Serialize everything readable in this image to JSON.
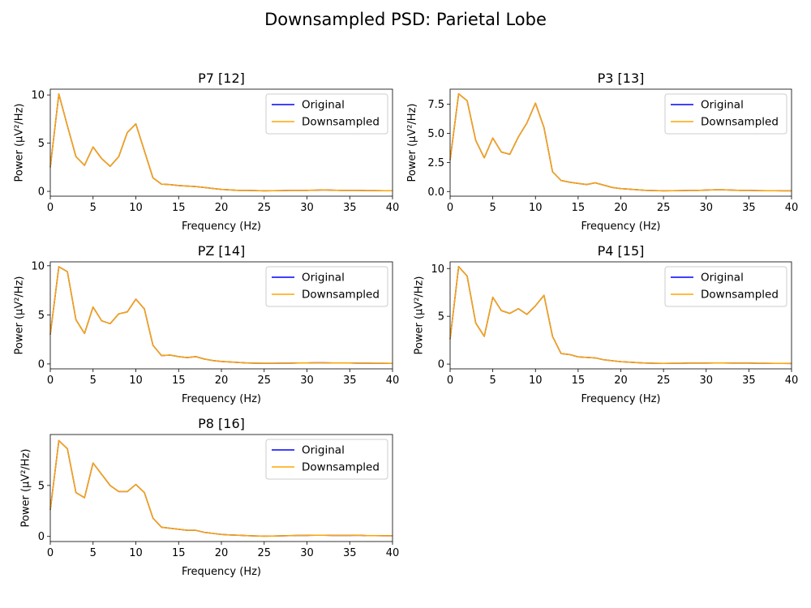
{
  "figure": {
    "suptitle": "Downsampled PSD: Parietal Lobe"
  },
  "colors": {
    "original": "#0000ff",
    "downsampled": "#ffa500",
    "axes": "#000000",
    "legend_border": "#cccccc"
  },
  "chart_data": [
    {
      "type": "line",
      "title": "P7 [12]",
      "xlabel": "Frequency (Hz)",
      "ylabel": "Power (µV²/Hz)",
      "xlim": [
        0,
        40
      ],
      "ylim": [
        -0.5,
        10.6
      ],
      "xticks": [
        0,
        5,
        10,
        15,
        20,
        25,
        30,
        35,
        40
      ],
      "yticks": [
        0,
        5,
        10
      ],
      "ytick_labels": [
        "0",
        "5",
        "10"
      ],
      "legend_position": "upper right",
      "x": [
        0,
        1,
        2,
        3,
        4,
        5,
        6,
        7,
        8,
        9,
        10,
        11,
        12,
        13,
        14,
        15,
        16,
        17,
        18,
        19,
        20,
        21,
        22,
        23,
        24,
        25,
        26,
        27,
        28,
        29,
        30,
        31,
        32,
        33,
        34,
        35,
        36,
        37,
        38,
        39,
        40
      ],
      "series": [
        {
          "name": "Original",
          "values": [
            2.5,
            10.1,
            6.8,
            3.6,
            2.7,
            4.6,
            3.4,
            2.6,
            3.6,
            6.1,
            7.0,
            4.2,
            1.4,
            0.75,
            0.7,
            0.6,
            0.55,
            0.5,
            0.4,
            0.3,
            0.2,
            0.15,
            0.1,
            0.1,
            0.08,
            0.06,
            0.07,
            0.08,
            0.1,
            0.1,
            0.1,
            0.12,
            0.15,
            0.12,
            0.1,
            0.1,
            0.1,
            0.08,
            0.08,
            0.07,
            0.07
          ]
        },
        {
          "name": "Downsampled",
          "values": [
            2.5,
            10.1,
            6.8,
            3.6,
            2.7,
            4.6,
            3.4,
            2.6,
            3.6,
            6.1,
            7.0,
            4.2,
            1.4,
            0.75,
            0.7,
            0.6,
            0.55,
            0.5,
            0.4,
            0.3,
            0.2,
            0.15,
            0.1,
            0.1,
            0.08,
            0.06,
            0.07,
            0.08,
            0.1,
            0.1,
            0.1,
            0.12,
            0.15,
            0.12,
            0.1,
            0.1,
            0.1,
            0.08,
            0.08,
            0.07,
            0.07
          ]
        }
      ]
    },
    {
      "type": "line",
      "title": "P3 [13]",
      "xlabel": "Frequency (Hz)",
      "ylabel": "Power (µV²/Hz)",
      "xlim": [
        0,
        40
      ],
      "ylim": [
        -0.4,
        8.8
      ],
      "xticks": [
        0,
        5,
        10,
        15,
        20,
        25,
        30,
        35,
        40
      ],
      "yticks": [
        0,
        2.5,
        5,
        7.5
      ],
      "ytick_labels": [
        "0.0",
        "2.5",
        "5.0",
        "7.5"
      ],
      "legend_position": "upper right",
      "x": [
        0,
        1,
        2,
        3,
        4,
        5,
        6,
        7,
        8,
        9,
        10,
        11,
        12,
        13,
        14,
        15,
        16,
        17,
        18,
        19,
        20,
        21,
        22,
        23,
        24,
        25,
        26,
        27,
        28,
        29,
        30,
        31,
        32,
        33,
        34,
        35,
        36,
        37,
        38,
        39,
        40
      ],
      "series": [
        {
          "name": "Original",
          "values": [
            2.7,
            8.4,
            7.8,
            4.4,
            2.9,
            4.6,
            3.4,
            3.2,
            4.7,
            5.9,
            7.6,
            5.5,
            1.7,
            0.95,
            0.8,
            0.7,
            0.6,
            0.75,
            0.55,
            0.35,
            0.25,
            0.2,
            0.15,
            0.1,
            0.08,
            0.06,
            0.07,
            0.08,
            0.1,
            0.1,
            0.12,
            0.15,
            0.15,
            0.12,
            0.1,
            0.1,
            0.08,
            0.07,
            0.07,
            0.06,
            0.06
          ]
        },
        {
          "name": "Downsampled",
          "values": [
            2.7,
            8.4,
            7.8,
            4.4,
            2.9,
            4.6,
            3.4,
            3.2,
            4.7,
            5.9,
            7.6,
            5.5,
            1.7,
            0.95,
            0.8,
            0.7,
            0.6,
            0.75,
            0.55,
            0.35,
            0.25,
            0.2,
            0.15,
            0.1,
            0.08,
            0.06,
            0.07,
            0.08,
            0.1,
            0.1,
            0.12,
            0.15,
            0.15,
            0.12,
            0.1,
            0.1,
            0.08,
            0.07,
            0.07,
            0.06,
            0.06
          ]
        }
      ]
    },
    {
      "type": "line",
      "title": "PZ [14]",
      "xlabel": "Frequency (Hz)",
      "ylabel": "Power (µV²/Hz)",
      "xlim": [
        0,
        40
      ],
      "ylim": [
        -0.5,
        10.4
      ],
      "xticks": [
        0,
        5,
        10,
        15,
        20,
        25,
        30,
        35,
        40
      ],
      "yticks": [
        0,
        5,
        10
      ],
      "ytick_labels": [
        "0",
        "5",
        "10"
      ],
      "legend_position": "upper right",
      "x": [
        0,
        1,
        2,
        3,
        4,
        5,
        6,
        7,
        8,
        9,
        10,
        11,
        12,
        13,
        14,
        15,
        16,
        17,
        18,
        19,
        20,
        21,
        22,
        23,
        24,
        25,
        26,
        27,
        28,
        29,
        30,
        31,
        32,
        33,
        34,
        35,
        36,
        37,
        38,
        39,
        40
      ],
      "series": [
        {
          "name": "Original",
          "values": [
            3.0,
            9.9,
            9.4,
            4.5,
            3.1,
            5.8,
            4.4,
            4.1,
            5.1,
            5.3,
            6.6,
            5.6,
            1.9,
            0.85,
            0.9,
            0.75,
            0.65,
            0.75,
            0.5,
            0.35,
            0.25,
            0.2,
            0.15,
            0.1,
            0.08,
            0.07,
            0.07,
            0.08,
            0.08,
            0.1,
            0.1,
            0.12,
            0.12,
            0.1,
            0.1,
            0.1,
            0.08,
            0.08,
            0.07,
            0.07,
            0.06
          ]
        },
        {
          "name": "Downsampled",
          "values": [
            3.0,
            9.9,
            9.4,
            4.5,
            3.1,
            5.8,
            4.4,
            4.1,
            5.1,
            5.3,
            6.6,
            5.6,
            1.9,
            0.85,
            0.9,
            0.75,
            0.65,
            0.75,
            0.5,
            0.35,
            0.25,
            0.2,
            0.15,
            0.1,
            0.08,
            0.07,
            0.07,
            0.08,
            0.08,
            0.1,
            0.1,
            0.12,
            0.12,
            0.1,
            0.1,
            0.1,
            0.08,
            0.08,
            0.07,
            0.07,
            0.06
          ]
        }
      ]
    },
    {
      "type": "line",
      "title": "P4 [15]",
      "xlabel": "Frequency (Hz)",
      "ylabel": "Power (µV²/Hz)",
      "xlim": [
        0,
        40
      ],
      "ylim": [
        -0.5,
        10.7
      ],
      "xticks": [
        0,
        5,
        10,
        15,
        20,
        25,
        30,
        35,
        40
      ],
      "yticks": [
        0,
        5,
        10
      ],
      "ytick_labels": [
        "0",
        "5",
        "10"
      ],
      "legend_position": "upper right",
      "x": [
        0,
        1,
        2,
        3,
        4,
        5,
        6,
        7,
        8,
        9,
        10,
        11,
        12,
        13,
        14,
        15,
        16,
        17,
        18,
        19,
        20,
        21,
        22,
        23,
        24,
        25,
        26,
        27,
        28,
        29,
        30,
        31,
        32,
        33,
        34,
        35,
        36,
        37,
        38,
        39,
        40
      ],
      "series": [
        {
          "name": "Original",
          "values": [
            2.6,
            10.2,
            9.2,
            4.3,
            2.9,
            7.0,
            5.6,
            5.3,
            5.8,
            5.2,
            6.1,
            7.2,
            2.9,
            1.1,
            1.0,
            0.75,
            0.7,
            0.65,
            0.45,
            0.35,
            0.25,
            0.2,
            0.15,
            0.1,
            0.08,
            0.07,
            0.08,
            0.08,
            0.1,
            0.1,
            0.1,
            0.12,
            0.12,
            0.1,
            0.1,
            0.1,
            0.08,
            0.08,
            0.07,
            0.07,
            0.06
          ]
        },
        {
          "name": "Downsampled",
          "values": [
            2.6,
            10.2,
            9.2,
            4.3,
            2.9,
            7.0,
            5.6,
            5.3,
            5.8,
            5.2,
            6.1,
            7.2,
            2.9,
            1.1,
            1.0,
            0.75,
            0.7,
            0.65,
            0.45,
            0.35,
            0.25,
            0.2,
            0.15,
            0.1,
            0.08,
            0.07,
            0.08,
            0.08,
            0.1,
            0.1,
            0.1,
            0.12,
            0.12,
            0.1,
            0.1,
            0.1,
            0.08,
            0.08,
            0.07,
            0.07,
            0.06
          ]
        }
      ]
    },
    {
      "type": "line",
      "title": "P8 [16]",
      "xlabel": "Frequency (Hz)",
      "ylabel": "Power (µV²/Hz)",
      "xlim": [
        0,
        40
      ],
      "ylim": [
        -0.5,
        10.0
      ],
      "xticks": [
        0,
        5,
        10,
        15,
        20,
        25,
        30,
        35,
        40
      ],
      "yticks": [
        0,
        5
      ],
      "ytick_labels": [
        "0",
        "5"
      ],
      "legend_position": "upper right",
      "x": [
        0,
        1,
        2,
        3,
        4,
        5,
        6,
        7,
        8,
        9,
        10,
        11,
        12,
        13,
        14,
        15,
        16,
        17,
        18,
        19,
        20,
        21,
        22,
        23,
        24,
        25,
        26,
        27,
        28,
        29,
        30,
        31,
        32,
        33,
        34,
        35,
        36,
        37,
        38,
        39,
        40
      ],
      "series": [
        {
          "name": "Original",
          "values": [
            2.6,
            9.4,
            8.6,
            4.3,
            3.8,
            7.2,
            6.1,
            5.0,
            4.4,
            4.4,
            5.1,
            4.3,
            1.8,
            0.9,
            0.8,
            0.7,
            0.6,
            0.6,
            0.4,
            0.3,
            0.2,
            0.15,
            0.12,
            0.08,
            0.05,
            0.03,
            0.04,
            0.06,
            0.08,
            0.1,
            0.1,
            0.12,
            0.12,
            0.1,
            0.1,
            0.1,
            0.12,
            0.08,
            0.08,
            0.07,
            0.07
          ]
        },
        {
          "name": "Downsampled",
          "values": [
            2.6,
            9.4,
            8.6,
            4.3,
            3.8,
            7.2,
            6.1,
            5.0,
            4.4,
            4.4,
            5.1,
            4.3,
            1.8,
            0.9,
            0.8,
            0.7,
            0.6,
            0.6,
            0.4,
            0.3,
            0.2,
            0.15,
            0.12,
            0.08,
            0.05,
            0.03,
            0.04,
            0.06,
            0.08,
            0.1,
            0.1,
            0.12,
            0.12,
            0.1,
            0.1,
            0.1,
            0.12,
            0.08,
            0.08,
            0.07,
            0.07
          ]
        }
      ]
    }
  ]
}
